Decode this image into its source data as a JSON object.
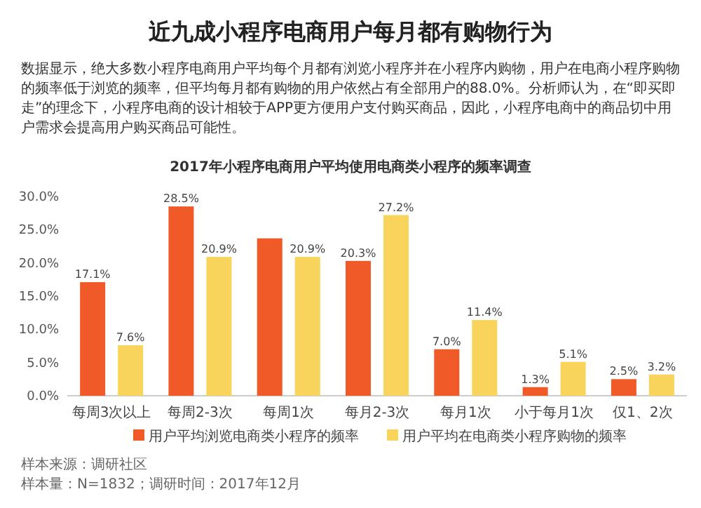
{
  "chart_data": {
    "type": "bar",
    "title": "近九成小程序电商用户每月都有购物行为",
    "subtitle": "2017年小程序电商用户平均使用电商类小程序的频率调查",
    "annotations": [
      "数据显示，绝大多数小程序电商用户平均每个月都有浏览小程序并在小程序内购物，用户在电商小程序购物的频率低于浏览的频率，但平均每月都有购物的用户依然占有全部用户的88.0%。分析师认为，在“即买即走”的理念下，小程序电商的设计相较于APP更方便用户支付购买商品，因此，小程序电商中的商品切中用户需求会提高用户购买商品可能性。",
      "样本来源：调研社区",
      "样本量：N=1832；调研时间：2017年12月"
    ],
    "categories": [
      "每周3次以上",
      "每周2-3次",
      "每周1次",
      "每月2-3次",
      "每月1次",
      "小于每月1次",
      "仅1、2次"
    ],
    "series": [
      {
        "name": "用户平均浏览电商类小程序的频率",
        "color": "#f05a28",
        "values": [
          17.1,
          28.5,
          23.7,
          20.3,
          7.0,
          1.3,
          2.5
        ],
        "value_labels": [
          "17.1%",
          "28.5%",
          null,
          "20.3%",
          "7.0%",
          "1.3%",
          "2.5%"
        ]
      },
      {
        "name": "用户平均在电商类小程序购物的频率",
        "color": "#f9d45c",
        "values": [
          7.6,
          20.9,
          20.9,
          27.2,
          11.4,
          5.1,
          3.2
        ],
        "value_labels": [
          "7.6%",
          "20.9%",
          "20.9%",
          "27.2%",
          "11.4%",
          "5.1%",
          "3.2%"
        ]
      }
    ],
    "ylim": [
      0,
      30
    ],
    "yticks": [
      {
        "value": 0,
        "label": "0.0%"
      },
      {
        "value": 5,
        "label": "5.0%"
      },
      {
        "value": 10,
        "label": "10.0%"
      },
      {
        "value": 15,
        "label": "15.0%"
      },
      {
        "value": 20,
        "label": "20.0%"
      },
      {
        "value": 25,
        "label": "25.0%"
      },
      {
        "value": 30,
        "label": "30.0%"
      }
    ],
    "legend": "bottom"
  }
}
